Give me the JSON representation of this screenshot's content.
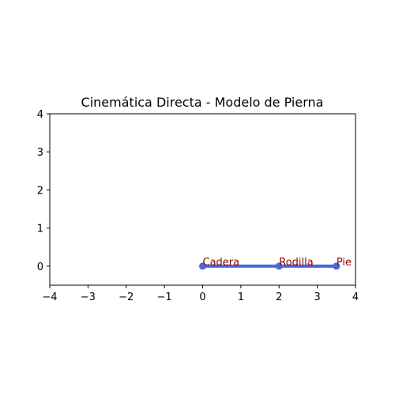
{
  "chart_data": {
    "type": "line",
    "title": "Cinemática Directa - Modelo de Pierna",
    "xlabel": "",
    "ylabel": "",
    "xlim": [
      -4,
      4
    ],
    "ylim": [
      -0.5,
      4
    ],
    "xticks": [
      -4,
      -3,
      -2,
      -1,
      0,
      1,
      2,
      3,
      4
    ],
    "yticks": [
      0,
      1,
      2,
      3,
      4
    ],
    "xtick_labels": [
      "−4",
      "−3",
      "−2",
      "−1",
      "0",
      "1",
      "2",
      "3",
      "4"
    ],
    "ytick_labels": [
      "0",
      "1",
      "2",
      "3",
      "4"
    ],
    "grid": false,
    "series": [
      {
        "x": [
          0,
          2,
          3.5
        ],
        "y": [
          0,
          0,
          0
        ],
        "color": "#4a68d6"
      }
    ],
    "annotations": [
      {
        "text": "Cadera",
        "x": 0,
        "y": 0,
        "color": "#8b0000"
      },
      {
        "text": "Rodilla",
        "x": 2,
        "y": 0,
        "color": "#8b0000"
      },
      {
        "text": "Pie",
        "x": 3.5,
        "y": 0,
        "color": "#8b0000"
      }
    ]
  }
}
